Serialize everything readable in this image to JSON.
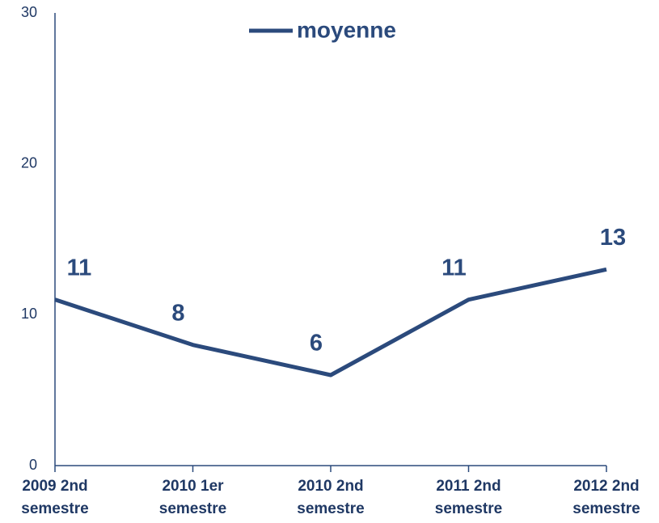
{
  "chart_data": {
    "type": "line",
    "categories": [
      "2009 2nd semestre",
      "2010 1er semestre",
      "2010 2nd semestre",
      "2011 2nd semestre",
      "2012 2nd semestre"
    ],
    "series": [
      {
        "name": "moyenne",
        "color": "#2b4a7c",
        "values": [
          11,
          8,
          6,
          11,
          13
        ]
      }
    ],
    "ylim": [
      0,
      30
    ],
    "yticks": [
      0,
      10,
      20,
      30
    ],
    "grid": false,
    "legend": "top"
  }
}
